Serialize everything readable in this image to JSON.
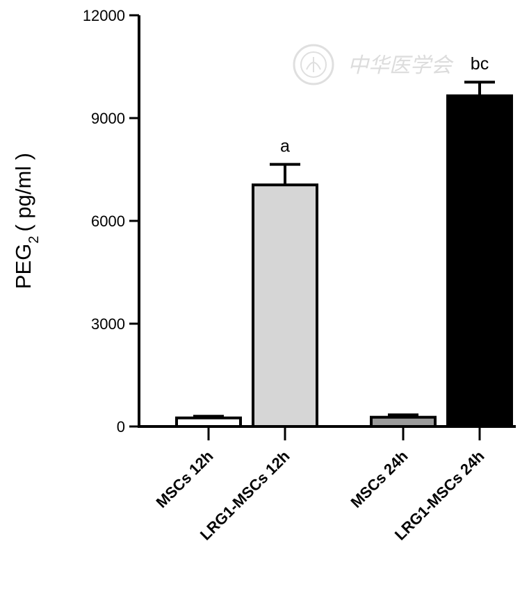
{
  "chart_data": {
    "type": "bar",
    "ylabel": {
      "main": "PEG",
      "sub": "2",
      "unit": "( pg/ml )"
    },
    "ylim": [
      0,
      12000
    ],
    "yticks": [
      "0",
      "3000",
      "6000",
      "9000",
      "12000"
    ],
    "yticks_values": [
      0,
      3000,
      6000,
      9000,
      12000
    ],
    "categories": [
      "MSCs 12h",
      "LRG1-MSCs 12h",
      "MSCs 24h",
      "LRG1-MSCs 24h"
    ],
    "values": [
      250,
      7050,
      270,
      9650
    ],
    "errors": [
      50,
      600,
      70,
      400
    ],
    "bar_colors": [
      "#ffffff",
      "#d6d6d6",
      "#9b9b9b",
      "#000000"
    ],
    "annotations": [
      "",
      "a",
      "",
      "bc"
    ],
    "grid": false,
    "legend": "none"
  },
  "watermark": {
    "text": "中华医学会"
  }
}
